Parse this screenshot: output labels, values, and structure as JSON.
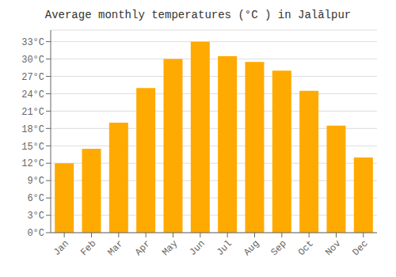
{
  "chart_data": {
    "type": "bar",
    "title": "Average monthly temperatures (°C ) in Jalālpur",
    "categories": [
      "Jan",
      "Feb",
      "Mar",
      "Apr",
      "May",
      "Jun",
      "Jul",
      "Aug",
      "Sep",
      "Oct",
      "Nov",
      "Dec"
    ],
    "values": [
      12,
      14.5,
      19,
      25,
      30,
      33,
      30.5,
      29.5,
      28,
      24.5,
      18.5,
      13
    ],
    "color": "#FFAA00",
    "ylim": [
      0,
      35
    ],
    "yticks": [
      {
        "value": 0,
        "label": "0°C"
      },
      {
        "value": 3,
        "label": "3°C"
      },
      {
        "value": 6,
        "label": "6°C"
      },
      {
        "value": 9,
        "label": "9°C"
      },
      {
        "value": 12,
        "label": "12°C"
      },
      {
        "value": 15,
        "label": "15°C"
      },
      {
        "value": 18,
        "label": "18°C"
      },
      {
        "value": 21,
        "label": "21°C"
      },
      {
        "value": 24,
        "label": "24°C"
      },
      {
        "value": 27,
        "label": "27°C"
      },
      {
        "value": 30,
        "label": "30°C"
      },
      {
        "value": 33,
        "label": "33°C"
      }
    ],
    "grid": true
  }
}
